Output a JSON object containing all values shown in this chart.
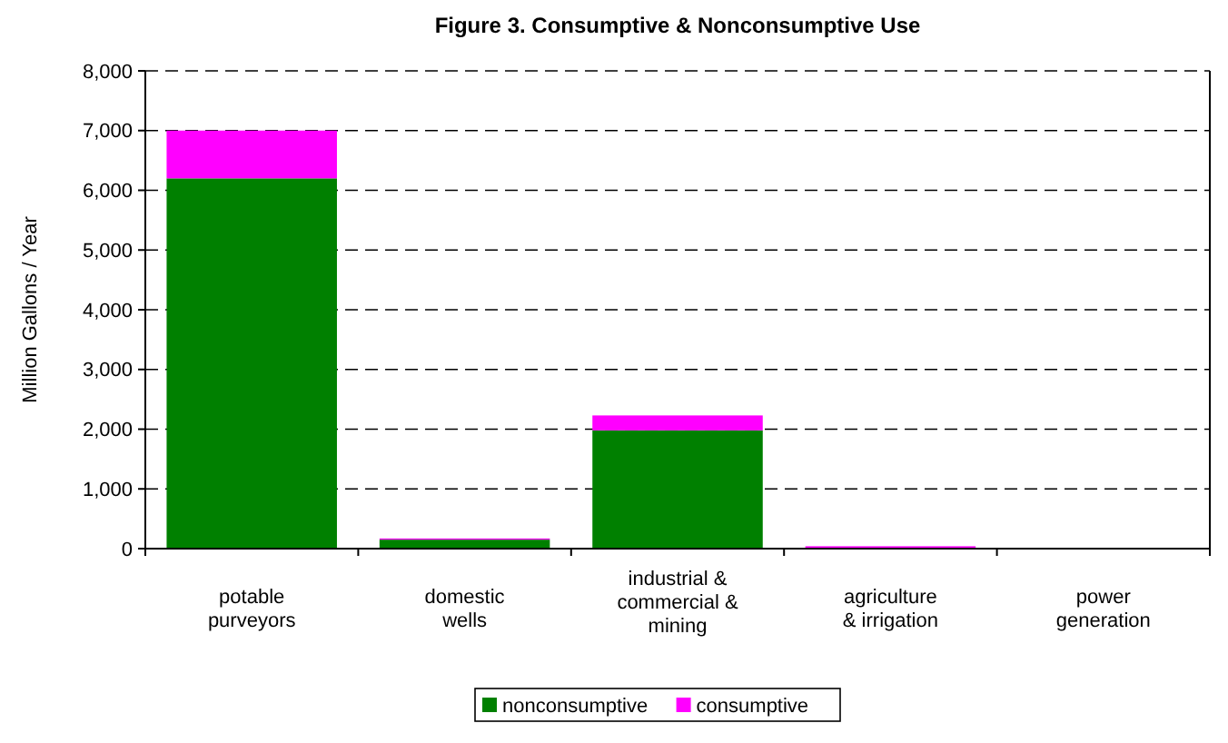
{
  "chart_data": {
    "type": "bar",
    "title": "Figure 3. Consumptive & Nonconsumptive Use",
    "ylabel": "Million Gallons / Year",
    "categories": [
      "potable purveyors",
      "domestic wells",
      "industrial & commercial & mining",
      "agriculture & irrigation",
      "power generation"
    ],
    "stacked": true,
    "series": [
      {
        "name": "nonconsumptive",
        "color": "#008000",
        "values": [
          6200,
          150,
          1980,
          0,
          0
        ]
      },
      {
        "name": "consumptive",
        "color": "#ff00ff",
        "values": [
          800,
          20,
          250,
          40,
          0
        ]
      }
    ],
    "ylim": [
      0,
      8000
    ],
    "yticks": [
      {
        "value": 0,
        "label": "0"
      },
      {
        "value": 1000,
        "label": "1,000"
      },
      {
        "value": 2000,
        "label": "2,000"
      },
      {
        "value": 3000,
        "label": "3,000"
      },
      {
        "value": 4000,
        "label": "4,000"
      },
      {
        "value": 5000,
        "label": "5,000"
      },
      {
        "value": 6000,
        "label": "6,000"
      },
      {
        "value": 7000,
        "label": "7,000"
      },
      {
        "value": 8000,
        "label": "8,000"
      }
    ],
    "grid": "y",
    "legend": "bottom"
  }
}
